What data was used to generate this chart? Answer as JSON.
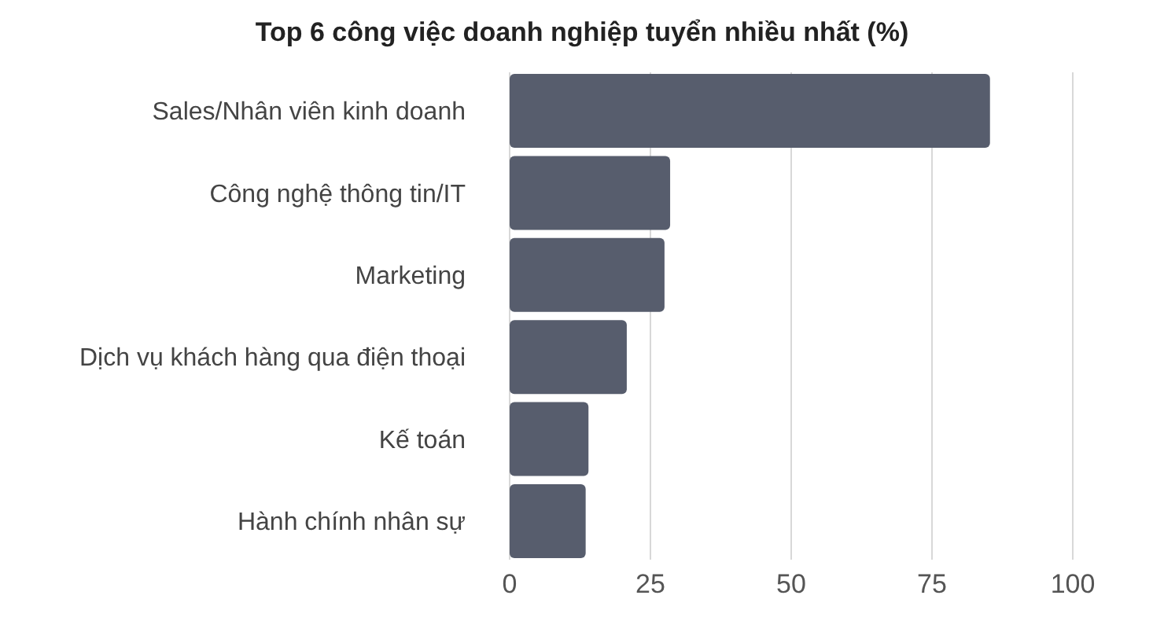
{
  "chart_data": {
    "type": "bar",
    "orientation": "horizontal",
    "title": "Top 6 công việc doanh nghiệp tuyển nhiều nhất (%)",
    "categories": [
      "Sales/Nhân viên kinh doanh",
      "Công nghệ thông tin/IT",
      "Marketing",
      "Dịch vụ khách hàng qua điện thoại",
      "Kế toán",
      "Hành chính nhân sự"
    ],
    "values": [
      85.3,
      28.5,
      27.5,
      20.8,
      14,
      13.5
    ],
    "color": "#575d6d",
    "xlim": [
      0,
      100
    ],
    "xticks": [
      0,
      25,
      50,
      75,
      100
    ],
    "grid": "x"
  }
}
